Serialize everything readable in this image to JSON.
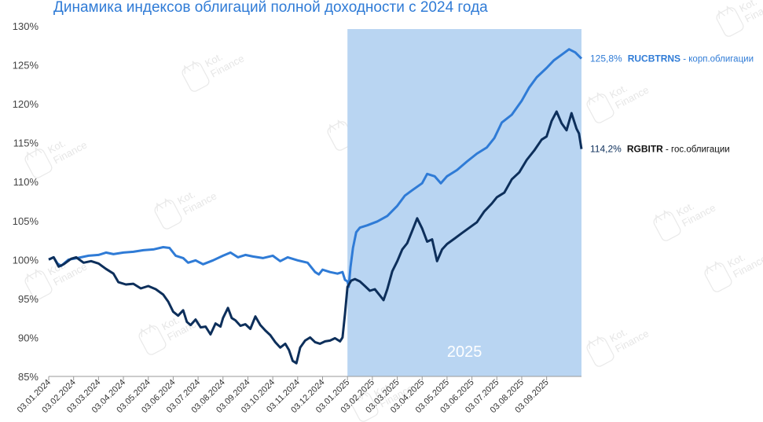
{
  "chart_data": {
    "type": "line",
    "title": "Динамика индексов облигаций полной доходности с 2024 года",
    "y_ticks": [
      "85%",
      "90%",
      "95%",
      "100%",
      "105%",
      "110%",
      "115%",
      "120%",
      "125%",
      "130%"
    ],
    "ylim": [
      85,
      130
    ],
    "x_ticks": [
      "03.01.2024",
      "03.02.2024",
      "03.03.2024",
      "03.04.2024",
      "03.05.2024",
      "03.06.2024",
      "03.07.2024",
      "03.08.2024",
      "03.09.2024",
      "03.10.2024",
      "03.11.2024",
      "03.12.2024",
      "03.01.2025",
      "03.02.2025",
      "03.03.2025",
      "03.04.2025",
      "03.05.2025",
      "03.06.2025",
      "03.07.2025",
      "03.08.2025",
      "03.09.2025"
    ],
    "highlight": {
      "label": "2025",
      "from_index": 12,
      "color": "#b9d5f2"
    },
    "grid": false,
    "watermark": "Kot Finance",
    "series": [
      {
        "name": "RUCBTRNS",
        "suffix": " - корп.облигации",
        "end_label": "125,8%",
        "color": "#2f7bd6",
        "points": [
          [
            0,
            100
          ],
          [
            0.2,
            100.3
          ],
          [
            0.35,
            99.5
          ],
          [
            0.5,
            99.2
          ],
          [
            0.8,
            100
          ],
          [
            1.0,
            100.1
          ],
          [
            1.3,
            100.3
          ],
          [
            1.6,
            100.5
          ],
          [
            2.0,
            100.6
          ],
          [
            2.3,
            100.9
          ],
          [
            2.6,
            100.7
          ],
          [
            3.0,
            100.9
          ],
          [
            3.4,
            101.0
          ],
          [
            3.8,
            101.2
          ],
          [
            4.2,
            101.3
          ],
          [
            4.6,
            101.6
          ],
          [
            4.85,
            101.5
          ],
          [
            5.1,
            100.5
          ],
          [
            5.4,
            100.2
          ],
          [
            5.6,
            99.6
          ],
          [
            5.9,
            99.9
          ],
          [
            6.2,
            99.4
          ],
          [
            6.6,
            99.9
          ],
          [
            7.0,
            100.5
          ],
          [
            7.3,
            100.9
          ],
          [
            7.6,
            100.3
          ],
          [
            7.9,
            100.6
          ],
          [
            8.2,
            100.4
          ],
          [
            8.6,
            100.2
          ],
          [
            9.0,
            100.5
          ],
          [
            9.3,
            99.8
          ],
          [
            9.6,
            100.3
          ],
          [
            10.0,
            99.9
          ],
          [
            10.4,
            99.6
          ],
          [
            10.7,
            98.4
          ],
          [
            10.85,
            98.1
          ],
          [
            11.0,
            98.7
          ],
          [
            11.3,
            98.4
          ],
          [
            11.6,
            98.2
          ],
          [
            11.8,
            98.4
          ],
          [
            11.9,
            97.4
          ],
          [
            12.0,
            97.2
          ],
          [
            12.05,
            96.5
          ],
          [
            12.12,
            99
          ],
          [
            12.22,
            101.5
          ],
          [
            12.35,
            103.5
          ],
          [
            12.5,
            104.1
          ],
          [
            12.8,
            104.4
          ],
          [
            13.2,
            104.9
          ],
          [
            13.6,
            105.6
          ],
          [
            14.0,
            106.9
          ],
          [
            14.3,
            108.2
          ],
          [
            14.6,
            108.9
          ],
          [
            15.0,
            109.8
          ],
          [
            15.2,
            111.0
          ],
          [
            15.5,
            110.7
          ],
          [
            15.75,
            109.8
          ],
          [
            16.0,
            110.7
          ],
          [
            16.4,
            111.5
          ],
          [
            16.8,
            112.6
          ],
          [
            17.2,
            113.6
          ],
          [
            17.6,
            114.4
          ],
          [
            17.9,
            115.6
          ],
          [
            18.2,
            117.6
          ],
          [
            18.6,
            118.6
          ],
          [
            19.0,
            120.4
          ],
          [
            19.3,
            122.1
          ],
          [
            19.6,
            123.4
          ],
          [
            20.0,
            124.6
          ],
          [
            20.3,
            125.6
          ],
          [
            20.6,
            126.3
          ],
          [
            20.9,
            127.0
          ],
          [
            21.15,
            126.6
          ],
          [
            21.4,
            125.8
          ]
        ]
      },
      {
        "name": "RGBITR",
        "suffix": " - гос.облигации",
        "end_label": "114,2%",
        "color": "#0d2f5b",
        "points": [
          [
            0,
            100
          ],
          [
            0.2,
            100.3
          ],
          [
            0.4,
            99.1
          ],
          [
            0.6,
            99.4
          ],
          [
            0.9,
            100.1
          ],
          [
            1.1,
            100.3
          ],
          [
            1.4,
            99.6
          ],
          [
            1.7,
            99.8
          ],
          [
            2.0,
            99.5
          ],
          [
            2.3,
            98.8
          ],
          [
            2.6,
            98.2
          ],
          [
            2.8,
            97.1
          ],
          [
            3.1,
            96.8
          ],
          [
            3.4,
            96.9
          ],
          [
            3.7,
            96.3
          ],
          [
            4.0,
            96.6
          ],
          [
            4.3,
            96.2
          ],
          [
            4.6,
            95.5
          ],
          [
            4.8,
            94.6
          ],
          [
            5.0,
            93.3
          ],
          [
            5.2,
            92.8
          ],
          [
            5.4,
            93.5
          ],
          [
            5.55,
            92.0
          ],
          [
            5.7,
            91.6
          ],
          [
            5.9,
            92.3
          ],
          [
            6.1,
            91.3
          ],
          [
            6.3,
            91.4
          ],
          [
            6.5,
            90.4
          ],
          [
            6.7,
            91.8
          ],
          [
            6.9,
            91.4
          ],
          [
            7.0,
            92.5
          ],
          [
            7.2,
            93.8
          ],
          [
            7.35,
            92.5
          ],
          [
            7.5,
            92.2
          ],
          [
            7.7,
            91.5
          ],
          [
            7.9,
            91.7
          ],
          [
            8.1,
            91.1
          ],
          [
            8.3,
            92.7
          ],
          [
            8.5,
            91.6
          ],
          [
            8.7,
            90.9
          ],
          [
            8.9,
            90.3
          ],
          [
            9.1,
            89.4
          ],
          [
            9.3,
            88.7
          ],
          [
            9.5,
            89.2
          ],
          [
            9.65,
            88.4
          ],
          [
            9.8,
            87.0
          ],
          [
            9.95,
            86.7
          ],
          [
            10.1,
            88.7
          ],
          [
            10.3,
            89.6
          ],
          [
            10.5,
            90.0
          ],
          [
            10.7,
            89.4
          ],
          [
            10.9,
            89.2
          ],
          [
            11.1,
            89.5
          ],
          [
            11.3,
            89.6
          ],
          [
            11.5,
            89.9
          ],
          [
            11.7,
            89.5
          ],
          [
            11.8,
            90.0
          ],
          [
            11.9,
            93.0
          ],
          [
            12.0,
            96.5
          ],
          [
            12.15,
            97.3
          ],
          [
            12.3,
            97.5
          ],
          [
            12.5,
            97.2
          ],
          [
            12.7,
            96.6
          ],
          [
            12.9,
            96.0
          ],
          [
            13.1,
            96.2
          ],
          [
            13.3,
            95.4
          ],
          [
            13.45,
            94.8
          ],
          [
            13.6,
            96.2
          ],
          [
            13.8,
            98.5
          ],
          [
            14.0,
            99.8
          ],
          [
            14.2,
            101.3
          ],
          [
            14.4,
            102.1
          ],
          [
            14.6,
            103.7
          ],
          [
            14.8,
            105.3
          ],
          [
            15.0,
            104.0
          ],
          [
            15.2,
            102.3
          ],
          [
            15.4,
            102.6
          ],
          [
            15.6,
            99.8
          ],
          [
            15.8,
            101.3
          ],
          [
            16.0,
            102.0
          ],
          [
            16.3,
            102.7
          ],
          [
            16.6,
            103.4
          ],
          [
            16.9,
            104.1
          ],
          [
            17.2,
            104.8
          ],
          [
            17.5,
            106.2
          ],
          [
            17.8,
            107.2
          ],
          [
            18.0,
            108.0
          ],
          [
            18.3,
            108.6
          ],
          [
            18.6,
            110.3
          ],
          [
            18.9,
            111.2
          ],
          [
            19.2,
            112.8
          ],
          [
            19.5,
            114.0
          ],
          [
            19.8,
            115.4
          ],
          [
            20.0,
            115.8
          ],
          [
            20.2,
            117.8
          ],
          [
            20.4,
            119.0
          ],
          [
            20.6,
            117.5
          ],
          [
            20.8,
            116.6
          ],
          [
            21.0,
            118.8
          ],
          [
            21.2,
            116.8
          ],
          [
            21.3,
            116.2
          ],
          [
            21.4,
            114.2
          ]
        ]
      }
    ]
  }
}
